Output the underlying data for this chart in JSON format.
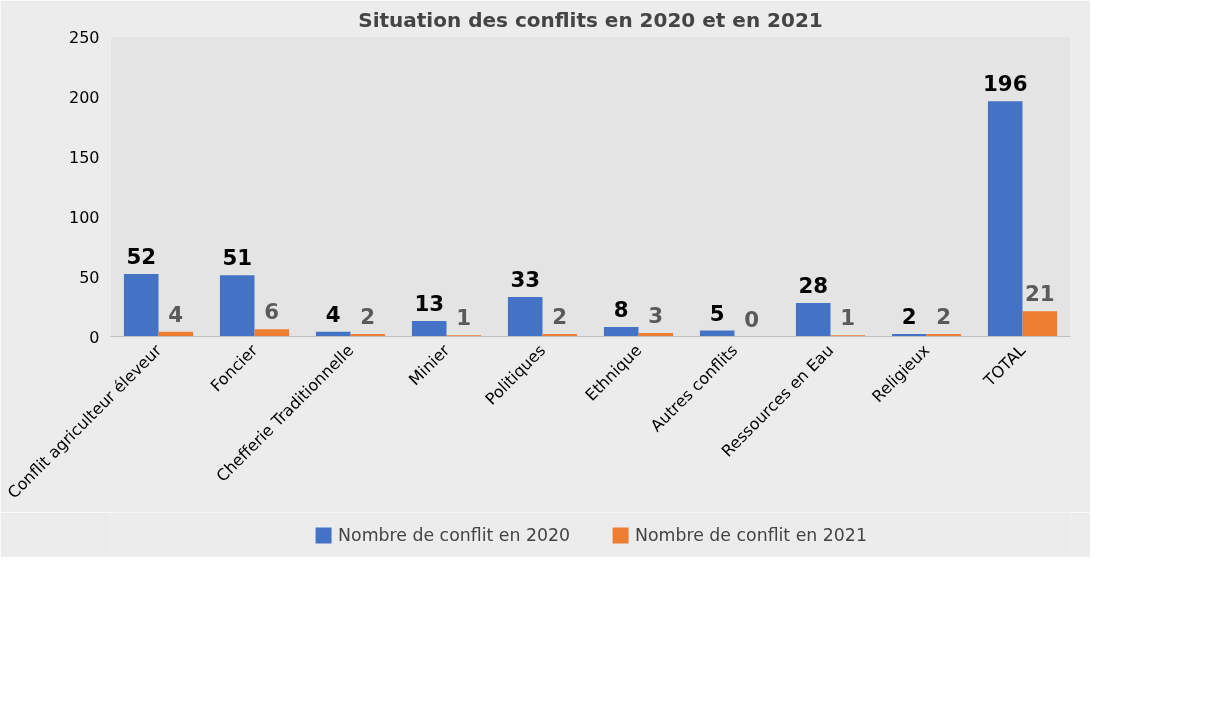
{
  "chart_data": {
    "type": "bar",
    "title": "Situation des conflits en 2020 et en 2021",
    "categories": [
      "Conflit agriculteur éleveur",
      "Foncier",
      "Chefferie Traditionnelle",
      "Minier",
      "Politiques",
      "Ethnique",
      "Autres conflits",
      "Ressources en Eau",
      "Religieux",
      "TOTAL"
    ],
    "series": [
      {
        "name": "Nombre de conflit en 2020",
        "color": "#4472c4",
        "values": [
          52,
          51,
          4,
          13,
          33,
          8,
          5,
          28,
          2,
          196
        ]
      },
      {
        "name": "Nombre de conflit en 2021",
        "color": "#ed7d31",
        "values": [
          4,
          6,
          2,
          1,
          2,
          3,
          0,
          1,
          2,
          21
        ]
      }
    ],
    "ylim": [
      0,
      250
    ],
    "yticks": [
      0,
      50,
      100,
      150,
      200,
      250
    ],
    "grid": false,
    "legend": "bottom",
    "data_labels": true
  }
}
